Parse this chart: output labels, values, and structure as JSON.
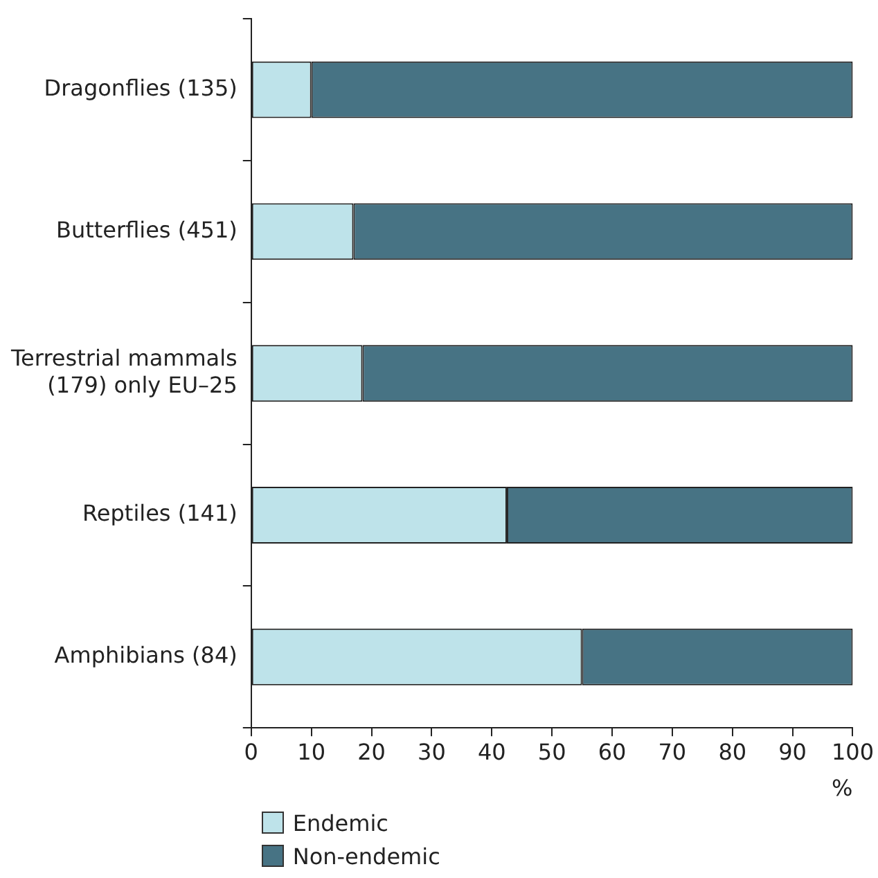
{
  "chart_data": {
    "type": "bar",
    "orientation": "horizontal",
    "stacked": true,
    "categories": [
      "Dragonflies (135)",
      "Butterflies (451)",
      "Terrestrial mammals (179) only EU–25",
      "Reptiles (141)",
      "Amphibians (84)"
    ],
    "series": [
      {
        "name": "Endemic",
        "color": "#bee3ea",
        "values": [
          10,
          17,
          18.5,
          42.5,
          55
        ]
      },
      {
        "name": "Non-endemic",
        "color": "#477384",
        "values": [
          90,
          83,
          81.5,
          57.5,
          45
        ]
      }
    ],
    "xlabel": "%",
    "xlim": [
      0,
      100
    ],
    "xticks": [
      0,
      10,
      20,
      30,
      40,
      50,
      60,
      70,
      80,
      90,
      100
    ],
    "grid": false,
    "legend": "bottom left"
  }
}
